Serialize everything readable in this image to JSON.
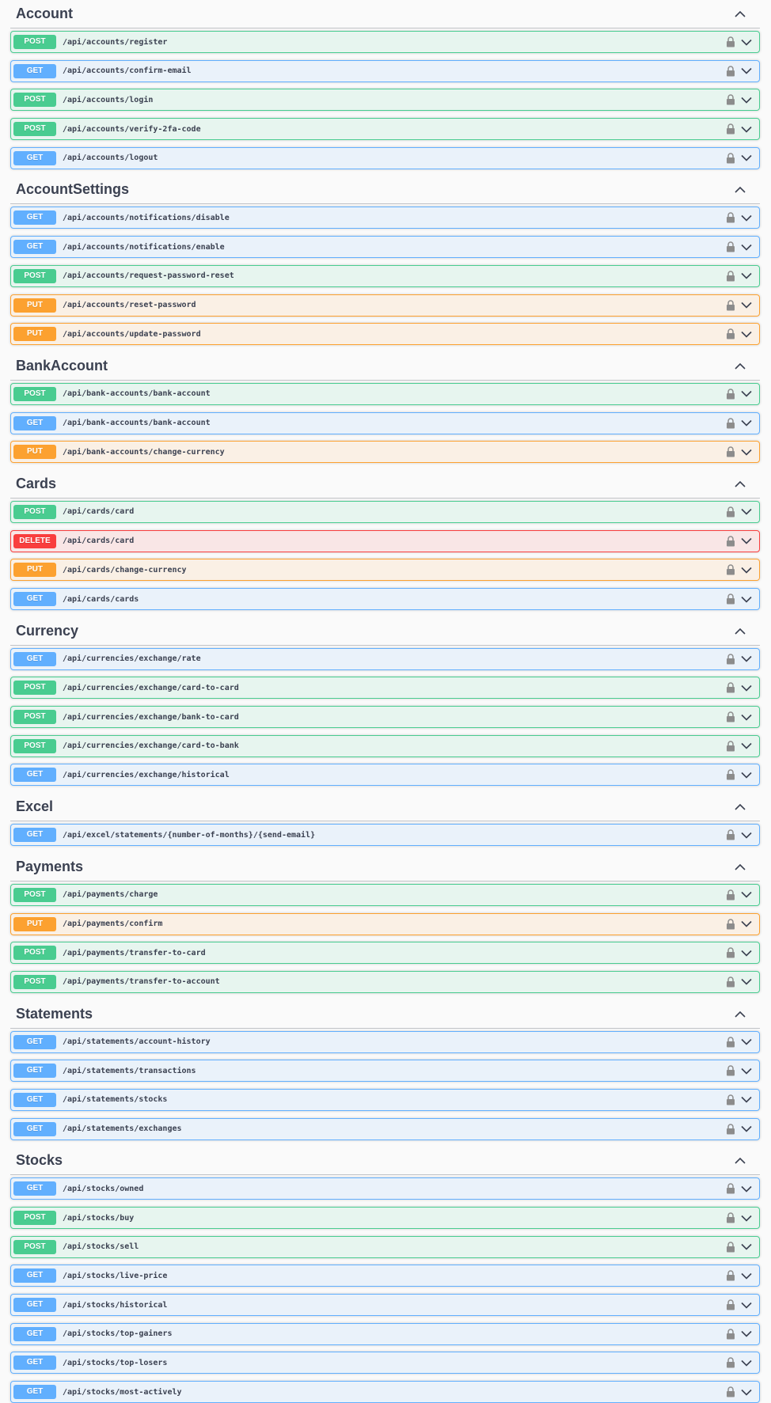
{
  "colors": {
    "get": "#61affe",
    "post": "#49cc90",
    "put": "#fca130",
    "delete": "#f93e3e"
  },
  "icons": {
    "collapse": "chevron-up-icon",
    "lock": "lock-icon",
    "expand": "chevron-down-icon"
  },
  "sections": [
    {
      "title": "Account",
      "ops": [
        {
          "method": "POST",
          "path": "/api/accounts/register"
        },
        {
          "method": "GET",
          "path": "/api/accounts/confirm-email"
        },
        {
          "method": "POST",
          "path": "/api/accounts/login"
        },
        {
          "method": "POST",
          "path": "/api/accounts/verify-2fa-code"
        },
        {
          "method": "GET",
          "path": "/api/accounts/logout"
        }
      ]
    },
    {
      "title": "AccountSettings",
      "ops": [
        {
          "method": "GET",
          "path": "/api/accounts/notifications/disable"
        },
        {
          "method": "GET",
          "path": "/api/accounts/notifications/enable"
        },
        {
          "method": "POST",
          "path": "/api/accounts/request-password-reset"
        },
        {
          "method": "PUT",
          "path": "/api/accounts/reset-password"
        },
        {
          "method": "PUT",
          "path": "/api/accounts/update-password"
        }
      ]
    },
    {
      "title": "BankAccount",
      "ops": [
        {
          "method": "POST",
          "path": "/api/bank-accounts/bank-account"
        },
        {
          "method": "GET",
          "path": "/api/bank-accounts/bank-account"
        },
        {
          "method": "PUT",
          "path": "/api/bank-accounts/change-currency"
        }
      ]
    },
    {
      "title": "Cards",
      "ops": [
        {
          "method": "POST",
          "path": "/api/cards/card"
        },
        {
          "method": "DELETE",
          "path": "/api/cards/card"
        },
        {
          "method": "PUT",
          "path": "/api/cards/change-currency"
        },
        {
          "method": "GET",
          "path": "/api/cards/cards"
        }
      ]
    },
    {
      "title": "Currency",
      "ops": [
        {
          "method": "GET",
          "path": "/api/currencies/exchange/rate"
        },
        {
          "method": "POST",
          "path": "/api/currencies/exchange/card-to-card"
        },
        {
          "method": "POST",
          "path": "/api/currencies/exchange/bank-to-card"
        },
        {
          "method": "POST",
          "path": "/api/currencies/exchange/card-to-bank"
        },
        {
          "method": "GET",
          "path": "/api/currencies/exchange/historical"
        }
      ]
    },
    {
      "title": "Excel",
      "ops": [
        {
          "method": "GET",
          "path": "/api/excel/statements/{number-of-months}/{send-email}"
        }
      ]
    },
    {
      "title": "Payments",
      "ops": [
        {
          "method": "POST",
          "path": "/api/payments/charge"
        },
        {
          "method": "PUT",
          "path": "/api/payments/confirm"
        },
        {
          "method": "POST",
          "path": "/api/payments/transfer-to-card"
        },
        {
          "method": "POST",
          "path": "/api/payments/transfer-to-account"
        }
      ]
    },
    {
      "title": "Statements",
      "ops": [
        {
          "method": "GET",
          "path": "/api/statements/account-history"
        },
        {
          "method": "GET",
          "path": "/api/statements/transactions"
        },
        {
          "method": "GET",
          "path": "/api/statements/stocks"
        },
        {
          "method": "GET",
          "path": "/api/statements/exchanges"
        }
      ]
    },
    {
      "title": "Stocks",
      "ops": [
        {
          "method": "GET",
          "path": "/api/stocks/owned"
        },
        {
          "method": "POST",
          "path": "/api/stocks/buy"
        },
        {
          "method": "POST",
          "path": "/api/stocks/sell"
        },
        {
          "method": "GET",
          "path": "/api/stocks/live-price"
        },
        {
          "method": "GET",
          "path": "/api/stocks/historical"
        },
        {
          "method": "GET",
          "path": "/api/stocks/top-gainers"
        },
        {
          "method": "GET",
          "path": "/api/stocks/top-losers"
        },
        {
          "method": "GET",
          "path": "/api/stocks/most-actively"
        }
      ]
    }
  ]
}
